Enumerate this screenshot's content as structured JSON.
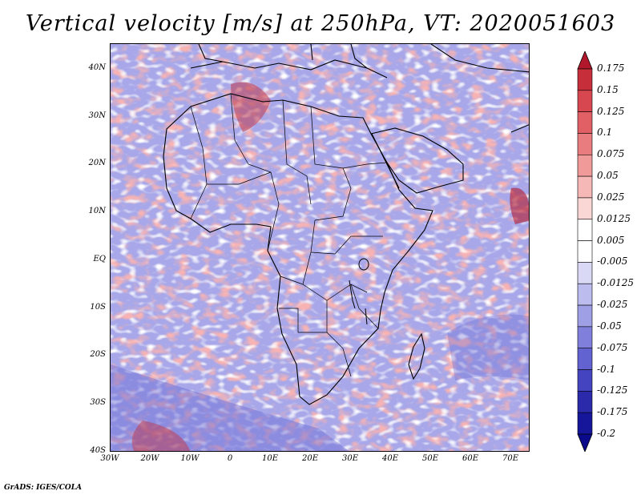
{
  "title": "Vertical velocity [m/s] at 250hPa, VT: 2020051603",
  "lat_labels": [
    "40N",
    "30N",
    "20N",
    "10N",
    "EQ",
    "10S",
    "20S",
    "30S",
    "40S"
  ],
  "lon_labels": [
    "30W",
    "20W",
    "10W",
    "0",
    "10E",
    "20E",
    "30E",
    "40E",
    "50E",
    "60E",
    "70E"
  ],
  "colorbar": {
    "levels": [
      "0.175",
      "0.15",
      "0.125",
      "0.1",
      "0.075",
      "0.05",
      "0.025",
      "0.0125",
      "0.005",
      "-0.005",
      "-0.0125",
      "-0.025",
      "-0.05",
      "-0.075",
      "-0.1",
      "-0.125",
      "-0.175",
      "-0.2"
    ],
    "colors": [
      "#b2182b",
      "#c62f3a",
      "#d6474f",
      "#e06066",
      "#e97c7f",
      "#f09a9a",
      "#f6b8b6",
      "#fad6d4",
      "#ffffff",
      "#ffffff",
      "#d9d9f6",
      "#bcbcef",
      "#9f9fe6",
      "#8080dc",
      "#6262d0",
      "#4444c0",
      "#2a2aab",
      "#16169a",
      "#0a0a8a"
    ]
  },
  "credit": "GrADS: IGES/COLA"
}
